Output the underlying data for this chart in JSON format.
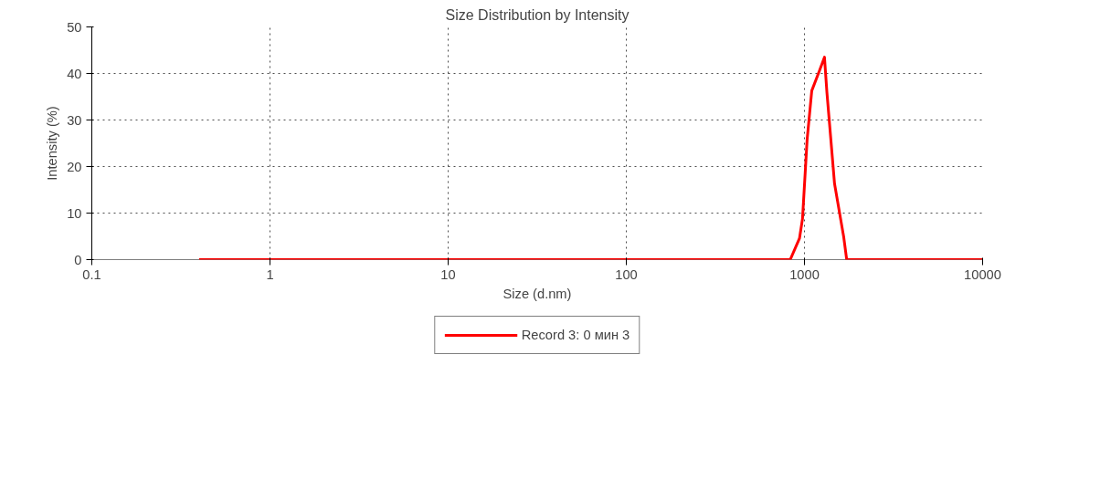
{
  "chart_data": {
    "type": "line",
    "title": "Size Distribution by Intensity",
    "xlabel": "Size (d.nm)",
    "ylabel": "Intensity (%)",
    "log": "x",
    "xlim": [
      0.1,
      10000
    ],
    "xticks": [
      0.1,
      1,
      10,
      100,
      1000,
      10000
    ],
    "ylim": [
      0,
      50
    ],
    "yticks": [
      0,
      10,
      20,
      30,
      40,
      50
    ],
    "grid": true,
    "legend": "bottom",
    "series": [
      {
        "name": "Record 3: 0 мин 3",
        "color": "#ff0000",
        "x": [
          0.4,
          832,
          938,
          975,
          1035,
          1099,
          1211,
          1295,
          1336,
          1475,
          1660,
          1726,
          10000
        ],
        "values": [
          0,
          0,
          4.6,
          8.8,
          25.8,
          36.3,
          40.5,
          43.5,
          36,
          16.3,
          4.9,
          0,
          0
        ]
      }
    ]
  }
}
